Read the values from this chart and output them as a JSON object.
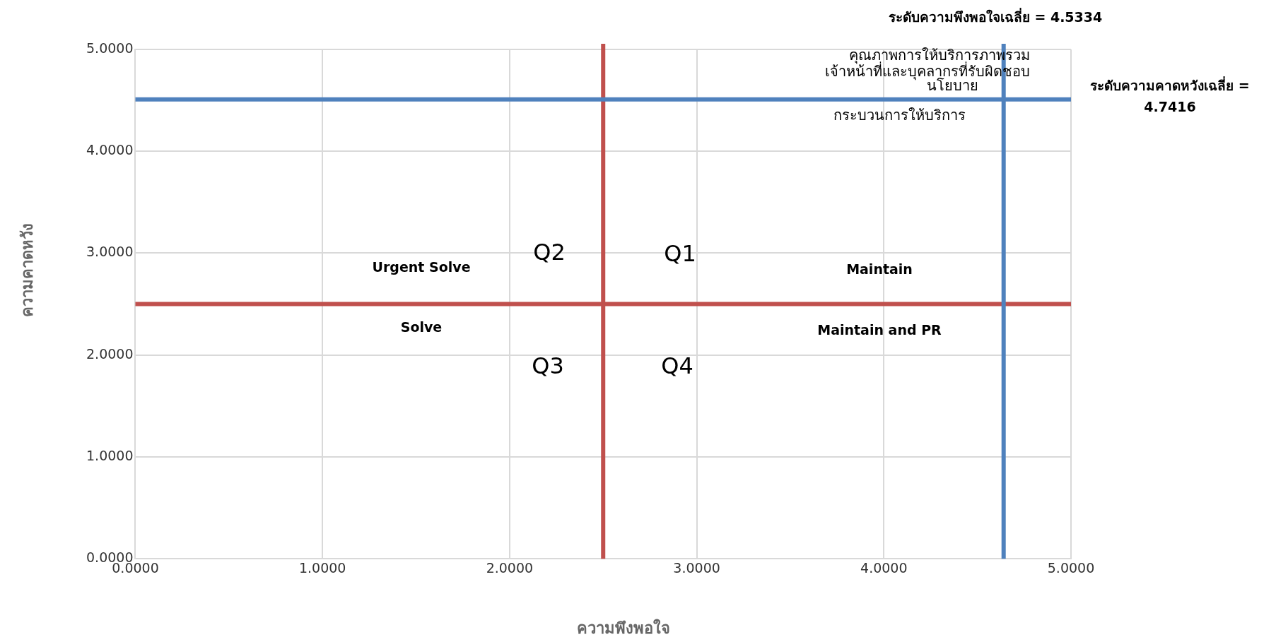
{
  "chart_data": {
    "type": "scatter",
    "xlabel": "ความพึงพอใจ",
    "ylabel": "ความคาดหวัง",
    "xlim": [
      0,
      5
    ],
    "ylim": [
      0,
      5
    ],
    "xticks": [
      {
        "value": 0,
        "label": "0.0000"
      },
      {
        "value": 1,
        "label": "1.0000"
      },
      {
        "value": 2,
        "label": "2.0000"
      },
      {
        "value": 3,
        "label": "3.0000"
      },
      {
        "value": 4,
        "label": "4.0000"
      },
      {
        "value": 5,
        "label": "5.0000"
      }
    ],
    "yticks": [
      {
        "value": 0,
        "label": "0.0000"
      },
      {
        "value": 1,
        "label": "1.0000"
      },
      {
        "value": 2,
        "label": "2.0000"
      },
      {
        "value": 3,
        "label": "3.0000"
      },
      {
        "value": 4,
        "label": "4.0000"
      },
      {
        "value": 5,
        "label": "5.0000"
      }
    ],
    "grid": true,
    "legend": false,
    "ref_lines": [
      {
        "axis": "x",
        "value": 2.5,
        "color": "#c0504d"
      },
      {
        "axis": "y",
        "value": 2.5,
        "color": "#c0504d"
      },
      {
        "axis": "x",
        "value": 4.64,
        "color": "#4f81bd"
      },
      {
        "axis": "y",
        "value": 4.51,
        "color": "#4f81bd"
      }
    ],
    "annotations": [
      "ระดับความพึงพอใจเฉลี่ย = 4.5334",
      "ระดับความคาดหวังเฉลี่ย = 4.7416",
      "คุณภาพการให้บริการภาพรวม",
      "เจ้าหน้าที่และบุคลากรที่รับผิดชอบ",
      "นโยบาย",
      "กระบวนการให้บริการ",
      "Urgent Solve",
      "Solve",
      "Maintain",
      "Maintain and PR",
      "Q2",
      "Q1",
      "Q3",
      "Q4"
    ]
  }
}
